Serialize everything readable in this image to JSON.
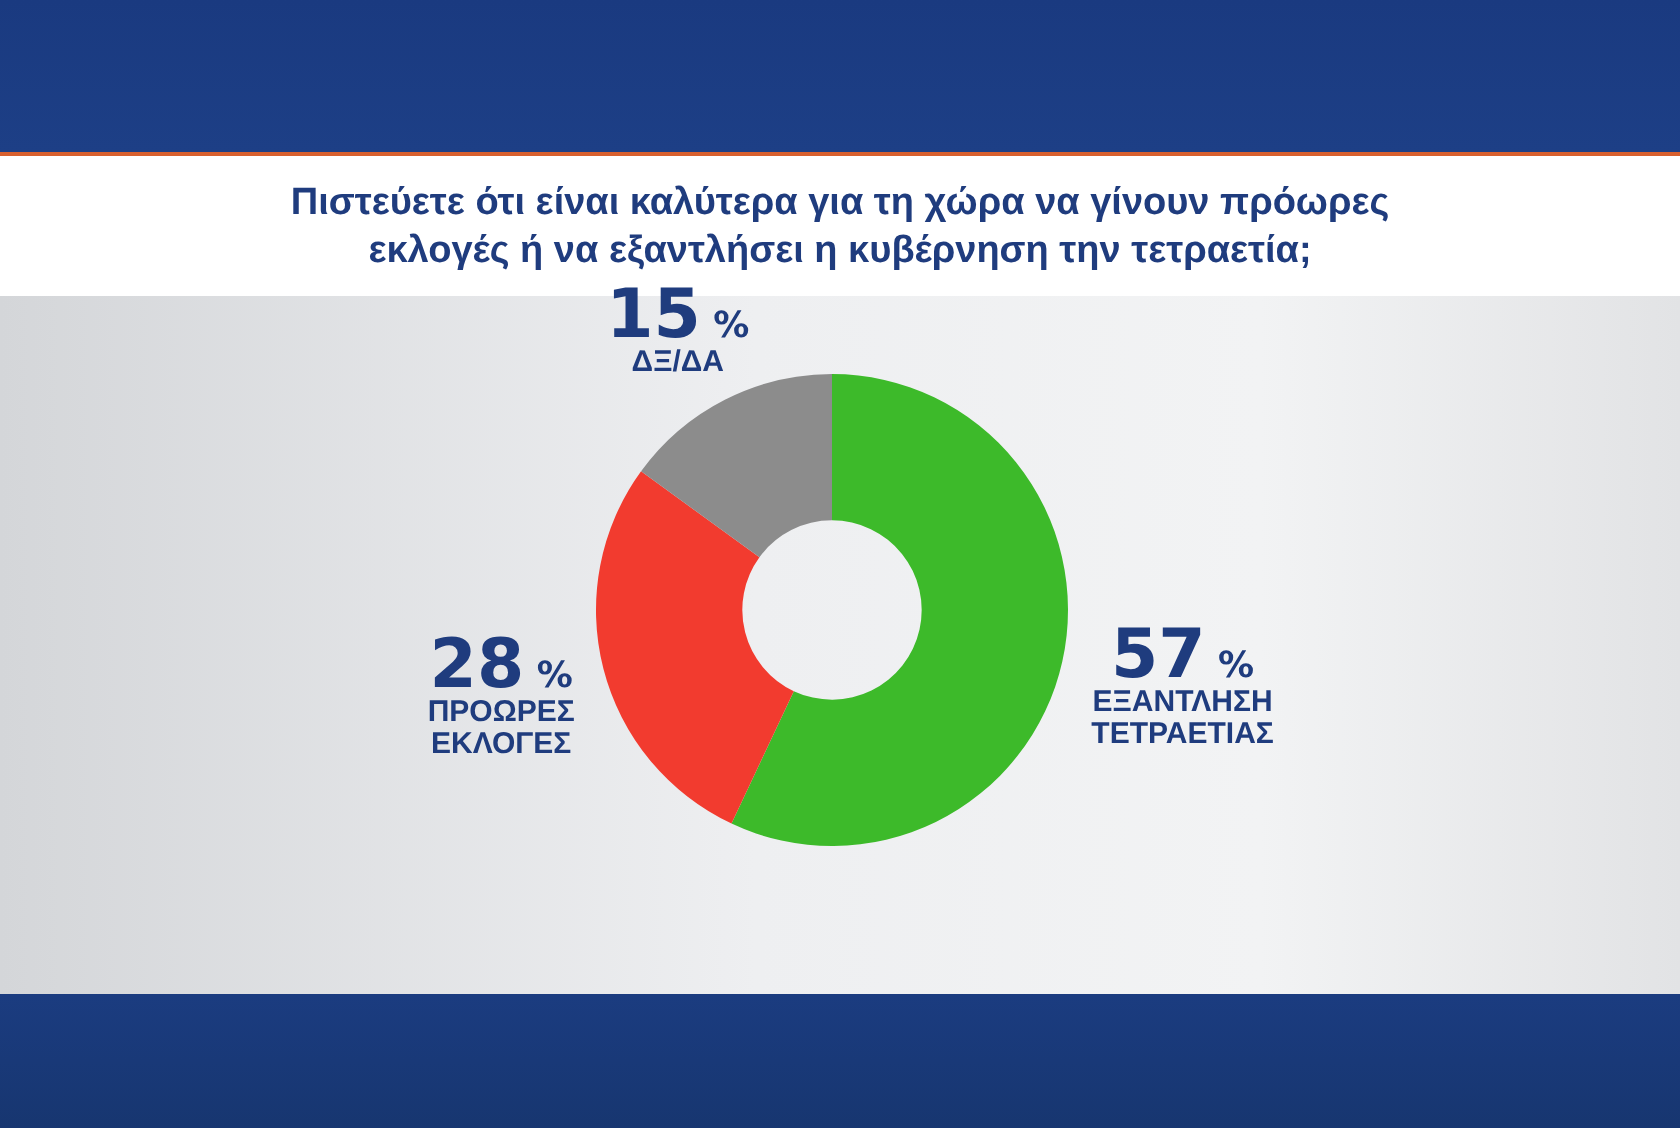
{
  "chart_data": {
    "type": "donut",
    "title": "Πιστεύετε ότι είναι καλύτερα για τη χώρα να γίνουν πρόωρες εκλογές ή να εξαντλήσει η κυβέρνηση την τετραετία;",
    "categories": [
      "ΕΞΑΝΤΛΗΣΗ ΤΕΤΡΑΕΤΙΑΣ",
      "ΠΡΟΩΡΕΣ ΕΚΛΟΓΕΣ",
      "ΔΞ/ΔΑ"
    ],
    "values": [
      57,
      28,
      15
    ],
    "colors": [
      "#3dba2a",
      "#f23b2f",
      "#8c8c8c"
    ],
    "value_labels": [
      "57 %",
      "28 %",
      "15 %"
    ]
  }
}
